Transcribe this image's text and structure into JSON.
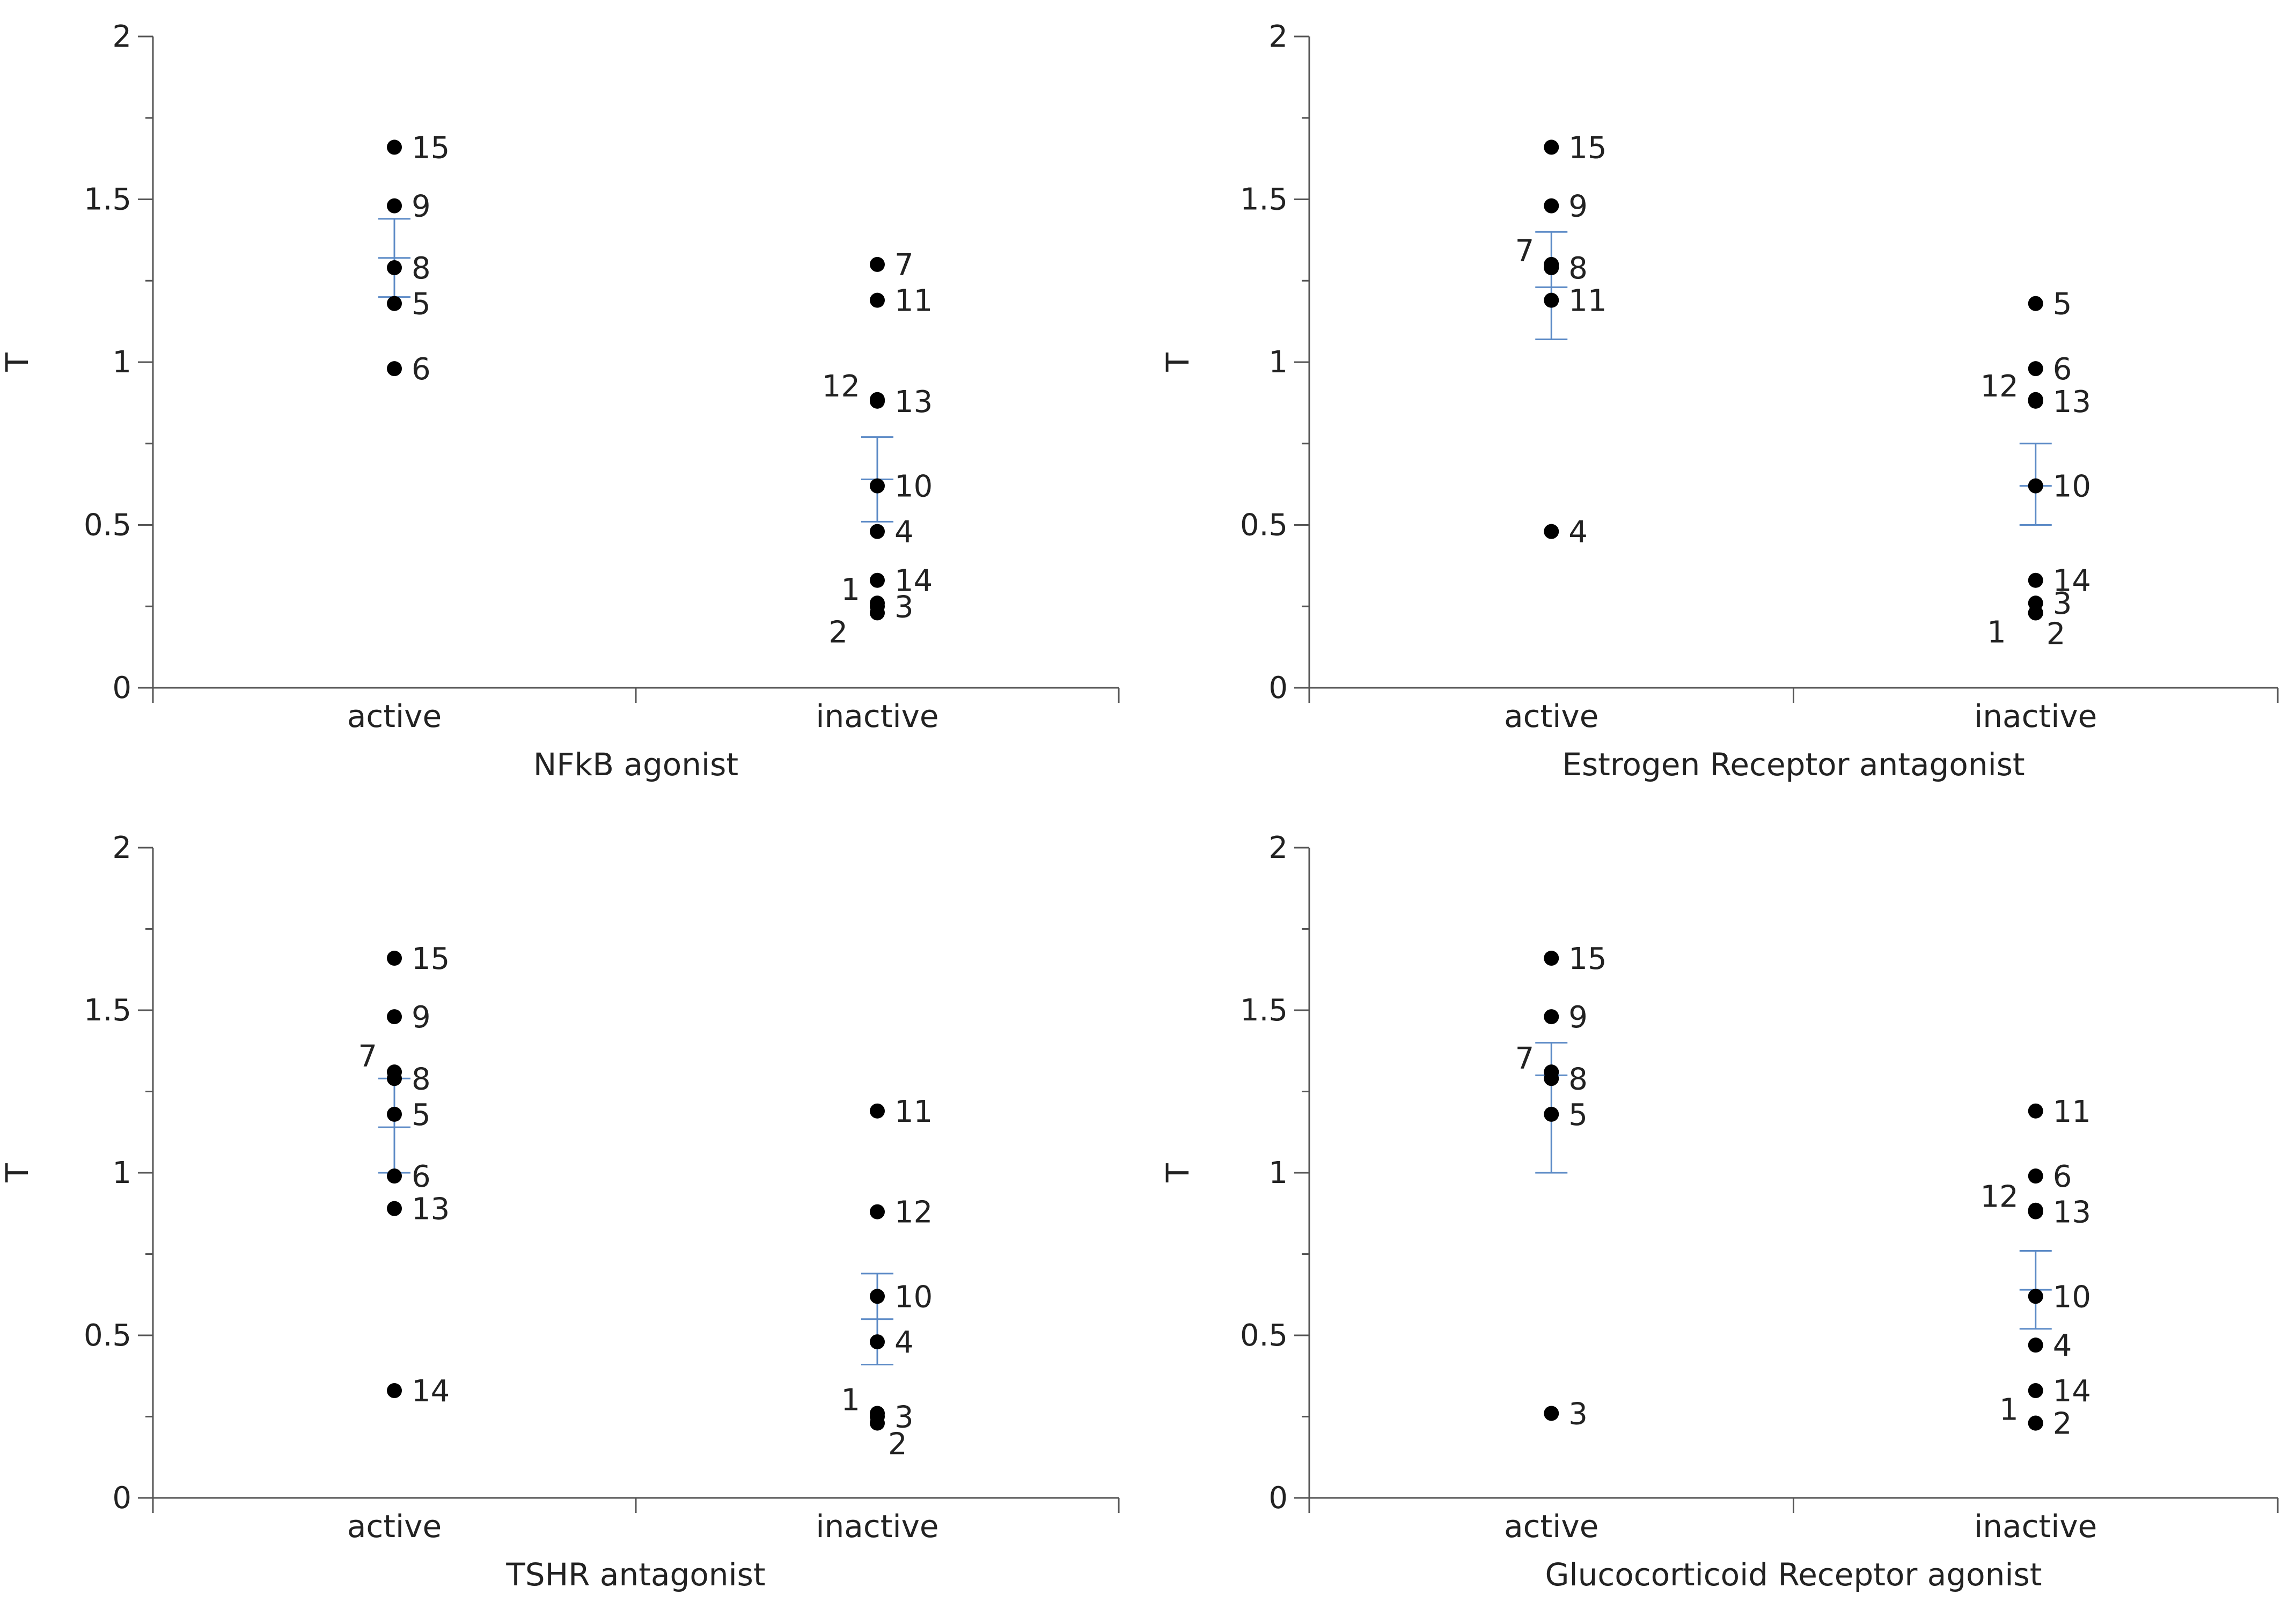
{
  "colors": {
    "point": "#000000",
    "errorbar": "#5b8ac6",
    "axis": "#555555",
    "text": "#222222"
  },
  "chart_data": [
    {
      "type": "scatter",
      "title": "NFkB agonist",
      "xlabel": "",
      "ylabel": "T",
      "categories": [
        "active",
        "inactive"
      ],
      "ylim": [
        0,
        2
      ],
      "yticks": [
        "0",
        "0.5",
        "1",
        "1.5",
        "2"
      ],
      "grid": false,
      "points": [
        {
          "label": "15",
          "category": "active",
          "y": 1.66
        },
        {
          "label": "9",
          "category": "active",
          "y": 1.48
        },
        {
          "label": "8",
          "category": "active",
          "y": 1.29
        },
        {
          "label": "5",
          "category": "active",
          "y": 1.18
        },
        {
          "label": "6",
          "category": "active",
          "y": 0.98
        },
        {
          "label": "7",
          "category": "inactive",
          "y": 1.3
        },
        {
          "label": "11",
          "category": "inactive",
          "y": 1.19
        },
        {
          "label": "12",
          "category": "inactive",
          "y": 0.885,
          "label_side": "left"
        },
        {
          "label": "13",
          "category": "inactive",
          "y": 0.88
        },
        {
          "label": "10",
          "category": "inactive",
          "y": 0.62
        },
        {
          "label": "4",
          "category": "inactive",
          "y": 0.48
        },
        {
          "label": "14",
          "category": "inactive",
          "y": 0.33
        },
        {
          "label": "1",
          "category": "inactive",
          "y": 0.26,
          "label_side": "left"
        },
        {
          "label": "3",
          "category": "inactive",
          "y": 0.25
        },
        {
          "label": "2",
          "category": "inactive",
          "y": 0.23,
          "label_side": "left-below"
        }
      ],
      "error_bars": [
        {
          "category": "active",
          "mean": 1.32,
          "low": 1.2,
          "high": 1.44
        },
        {
          "category": "inactive",
          "mean": 0.64,
          "low": 0.51,
          "high": 0.77
        }
      ]
    },
    {
      "type": "scatter",
      "title": "Estrogen Receptor antagonist",
      "xlabel": "",
      "ylabel": "T",
      "categories": [
        "active",
        "inactive"
      ],
      "ylim": [
        0,
        2
      ],
      "yticks": [
        "0",
        "0.5",
        "1",
        "1.5",
        "2"
      ],
      "grid": false,
      "points": [
        {
          "label": "15",
          "category": "active",
          "y": 1.66
        },
        {
          "label": "9",
          "category": "active",
          "y": 1.48
        },
        {
          "label": "7",
          "category": "active",
          "y": 1.3,
          "label_side": "left"
        },
        {
          "label": "8",
          "category": "active",
          "y": 1.29
        },
        {
          "label": "11",
          "category": "active",
          "y": 1.19
        },
        {
          "label": "4",
          "category": "active",
          "y": 0.48
        },
        {
          "label": "5",
          "category": "inactive",
          "y": 1.18
        },
        {
          "label": "6",
          "category": "inactive",
          "y": 0.98
        },
        {
          "label": "12",
          "category": "inactive",
          "y": 0.885,
          "label_side": "left"
        },
        {
          "label": "13",
          "category": "inactive",
          "y": 0.88
        },
        {
          "label": "10",
          "category": "inactive",
          "y": 0.62
        },
        {
          "label": "14",
          "category": "inactive",
          "y": 0.33
        },
        {
          "label": "3",
          "category": "inactive",
          "y": 0.26
        },
        {
          "label": "1",
          "category": "inactive",
          "y": 0.23,
          "label_side": "left-below"
        },
        {
          "label": "2",
          "category": "inactive",
          "y": 0.23,
          "label_side": "right-below"
        }
      ],
      "error_bars": [
        {
          "category": "active",
          "mean": 1.23,
          "low": 1.07,
          "high": 1.4
        },
        {
          "category": "inactive",
          "mean": 0.62,
          "low": 0.5,
          "high": 0.75
        }
      ]
    },
    {
      "type": "scatter",
      "title": "TSHR antagonist",
      "xlabel": "",
      "ylabel": "T",
      "categories": [
        "active",
        "inactive"
      ],
      "ylim": [
        0,
        2
      ],
      "yticks": [
        "0",
        "0.5",
        "1",
        "1.5",
        "2"
      ],
      "grid": false,
      "points": [
        {
          "label": "15",
          "category": "active",
          "y": 1.66
        },
        {
          "label": "9",
          "category": "active",
          "y": 1.48
        },
        {
          "label": "7",
          "category": "active",
          "y": 1.31,
          "label_side": "left-above"
        },
        {
          "label": "8",
          "category": "active",
          "y": 1.29
        },
        {
          "label": "5",
          "category": "active",
          "y": 1.18
        },
        {
          "label": "6",
          "category": "active",
          "y": 0.99
        },
        {
          "label": "13",
          "category": "active",
          "y": 0.89
        },
        {
          "label": "14",
          "category": "active",
          "y": 0.33
        },
        {
          "label": "11",
          "category": "inactive",
          "y": 1.19
        },
        {
          "label": "12",
          "category": "inactive",
          "y": 0.88
        },
        {
          "label": "10",
          "category": "inactive",
          "y": 0.62
        },
        {
          "label": "4",
          "category": "inactive",
          "y": 0.48
        },
        {
          "label": "1",
          "category": "inactive",
          "y": 0.26,
          "label_side": "left"
        },
        {
          "label": "3",
          "category": "inactive",
          "y": 0.25
        },
        {
          "label": "2",
          "category": "inactive",
          "y": 0.23,
          "label_side": "right-below"
        }
      ],
      "error_bars": [
        {
          "category": "active",
          "mean": 1.14,
          "low": 1.0,
          "high": 1.29
        },
        {
          "category": "inactive",
          "mean": 0.55,
          "low": 0.41,
          "high": 0.69
        }
      ]
    },
    {
      "type": "scatter",
      "title": "Glucocorticoid Receptor agonist",
      "xlabel": "",
      "ylabel": "T",
      "categories": [
        "active",
        "inactive"
      ],
      "ylim": [
        0,
        2
      ],
      "yticks": [
        "0",
        "0.5",
        "1",
        "1.5",
        "2"
      ],
      "grid": false,
      "points": [
        {
          "label": "15",
          "category": "active",
          "y": 1.66
        },
        {
          "label": "9",
          "category": "active",
          "y": 1.48
        },
        {
          "label": "7",
          "category": "active",
          "y": 1.31,
          "label_side": "left"
        },
        {
          "label": "8",
          "category": "active",
          "y": 1.29
        },
        {
          "label": "5",
          "category": "active",
          "y": 1.18
        },
        {
          "label": "3",
          "category": "active",
          "y": 0.26
        },
        {
          "label": "11",
          "category": "inactive",
          "y": 1.19
        },
        {
          "label": "6",
          "category": "inactive",
          "y": 0.99
        },
        {
          "label": "12",
          "category": "inactive",
          "y": 0.885,
          "label_side": "left"
        },
        {
          "label": "13",
          "category": "inactive",
          "y": 0.88
        },
        {
          "label": "10",
          "category": "inactive",
          "y": 0.62
        },
        {
          "label": "4",
          "category": "inactive",
          "y": 0.47
        },
        {
          "label": "14",
          "category": "inactive",
          "y": 0.33
        },
        {
          "label": "1",
          "category": "inactive",
          "y": 0.23,
          "label_side": "left"
        },
        {
          "label": "2",
          "category": "inactive",
          "y": 0.23
        }
      ],
      "error_bars": [
        {
          "category": "active",
          "mean": 1.3,
          "low": 1.0,
          "high": 1.4
        },
        {
          "category": "inactive",
          "mean": 0.64,
          "low": 0.52,
          "high": 0.76
        }
      ]
    }
  ]
}
